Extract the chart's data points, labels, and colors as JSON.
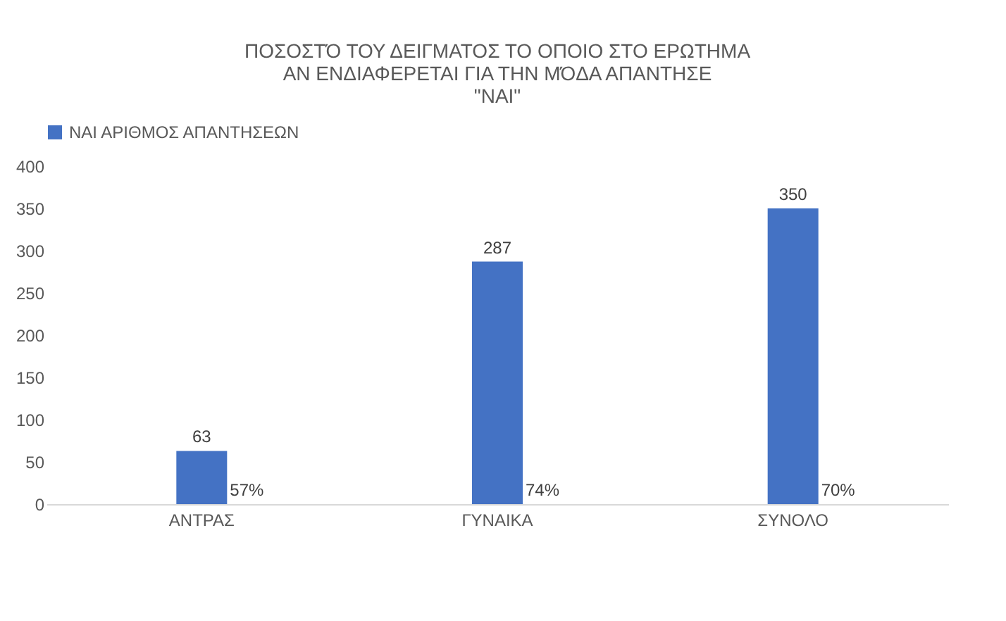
{
  "chart_data": {
    "type": "bar",
    "title": [
      "ΠΟΣΟΣΤΌ ΤΟΥ ΔΕΙΓΜΑΤΟΣ ΤΟ ΟΠΟΙΟ ΣΤΟ ΕΡΩΤΗΜΑ",
      "ΑΝ ΕΝΔΙΑΦΕΡΕΤΑΙ ΓΙΑ ΤΗΝ ΜΌΔΑ ΑΠΑΝΤΗΣΕ",
      "\"ΝΑΙ\""
    ],
    "categories": [
      "ΑΝΤΡΑΣ",
      "ΓΥΝΑΙΚΑ",
      "ΣΥΝΟΛΟ"
    ],
    "series": [
      {
        "name": "ΝΑΙ ΑΡΙΘΜΟΣ ΑΠΑΝΤΗΣΕΩΝ",
        "color": "#4472c4",
        "values": [
          63,
          287,
          350
        ]
      }
    ],
    "data_labels": true,
    "annotations": [
      {
        "text": "57%",
        "x": "ΑΝΤΡΑΣ",
        "y": 0
      },
      {
        "text": "74%",
        "x": "ΓΥΝΑΙΚΑ",
        "y": 0
      },
      {
        "text": "70%",
        "x": "ΣΥΝΟΛΟ",
        "y": 0
      }
    ],
    "ylim": [
      0,
      400
    ],
    "yticks": [
      0,
      50,
      100,
      150,
      200,
      250,
      300,
      350,
      400
    ],
    "legend": "top"
  }
}
